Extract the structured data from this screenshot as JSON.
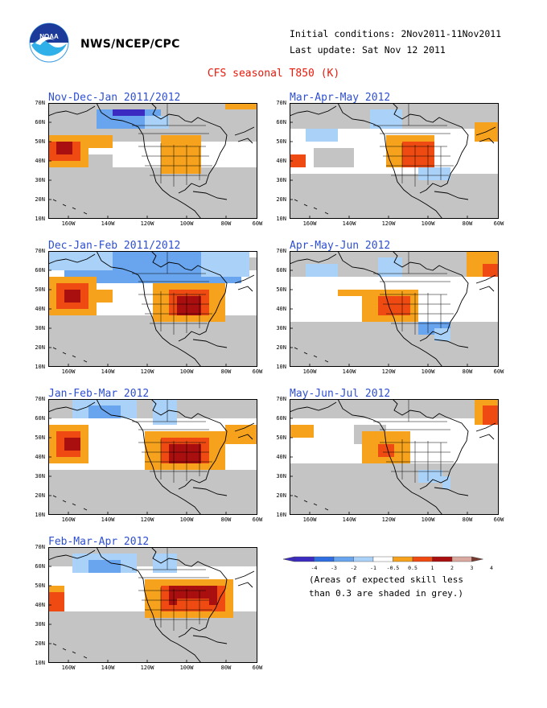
{
  "header": {
    "agency": "NWS/NCEP/CPC",
    "initial_conditions": "Initial conditions: 2Nov2011-11Nov2011",
    "last_update": "Last update: Sat Nov 12 2011",
    "title": "CFS seasonal T850 (K)"
  },
  "colors": {
    "title": "#e8190b",
    "panel_title": "#2e4fd2",
    "grey_low_skill": "#c4c4c4",
    "scale": [
      "#3b2bc0",
      "#2f6ee0",
      "#68a5ee",
      "#aad2f8",
      "#ffffff",
      "#f6a21c",
      "#ee4a12",
      "#a90f0f",
      "#d9a9a0",
      "#7a3a2e"
    ]
  },
  "axes": {
    "lat_labels": [
      "70N",
      "60N",
      "50N",
      "40N",
      "30N",
      "20N",
      "10N"
    ],
    "lon_labels": [
      "160W",
      "140W",
      "120W",
      "100W",
      "80W",
      "60W"
    ]
  },
  "panels": [
    {
      "title": "Nov-Dec-Jan 2011/2012"
    },
    {
      "title": "Mar-Apr-May 2012"
    },
    {
      "title": "Dec-Jan-Feb 2011/2012"
    },
    {
      "title": "Apr-May-Jun 2012"
    },
    {
      "title": "Jan-Feb-Mar 2012"
    },
    {
      "title": "May-Jun-Jul 2012"
    },
    {
      "title": "Feb-Mar-Apr 2012"
    }
  ],
  "legend": {
    "ticks": [
      "-4",
      "-3",
      "-2",
      "-1",
      "-0.5",
      "0.5",
      "1",
      "2",
      "3",
      "4"
    ],
    "note_line1": "(Areas of expected skill less",
    "note_line2": "than 0.3 are shaded in grey.)"
  }
}
